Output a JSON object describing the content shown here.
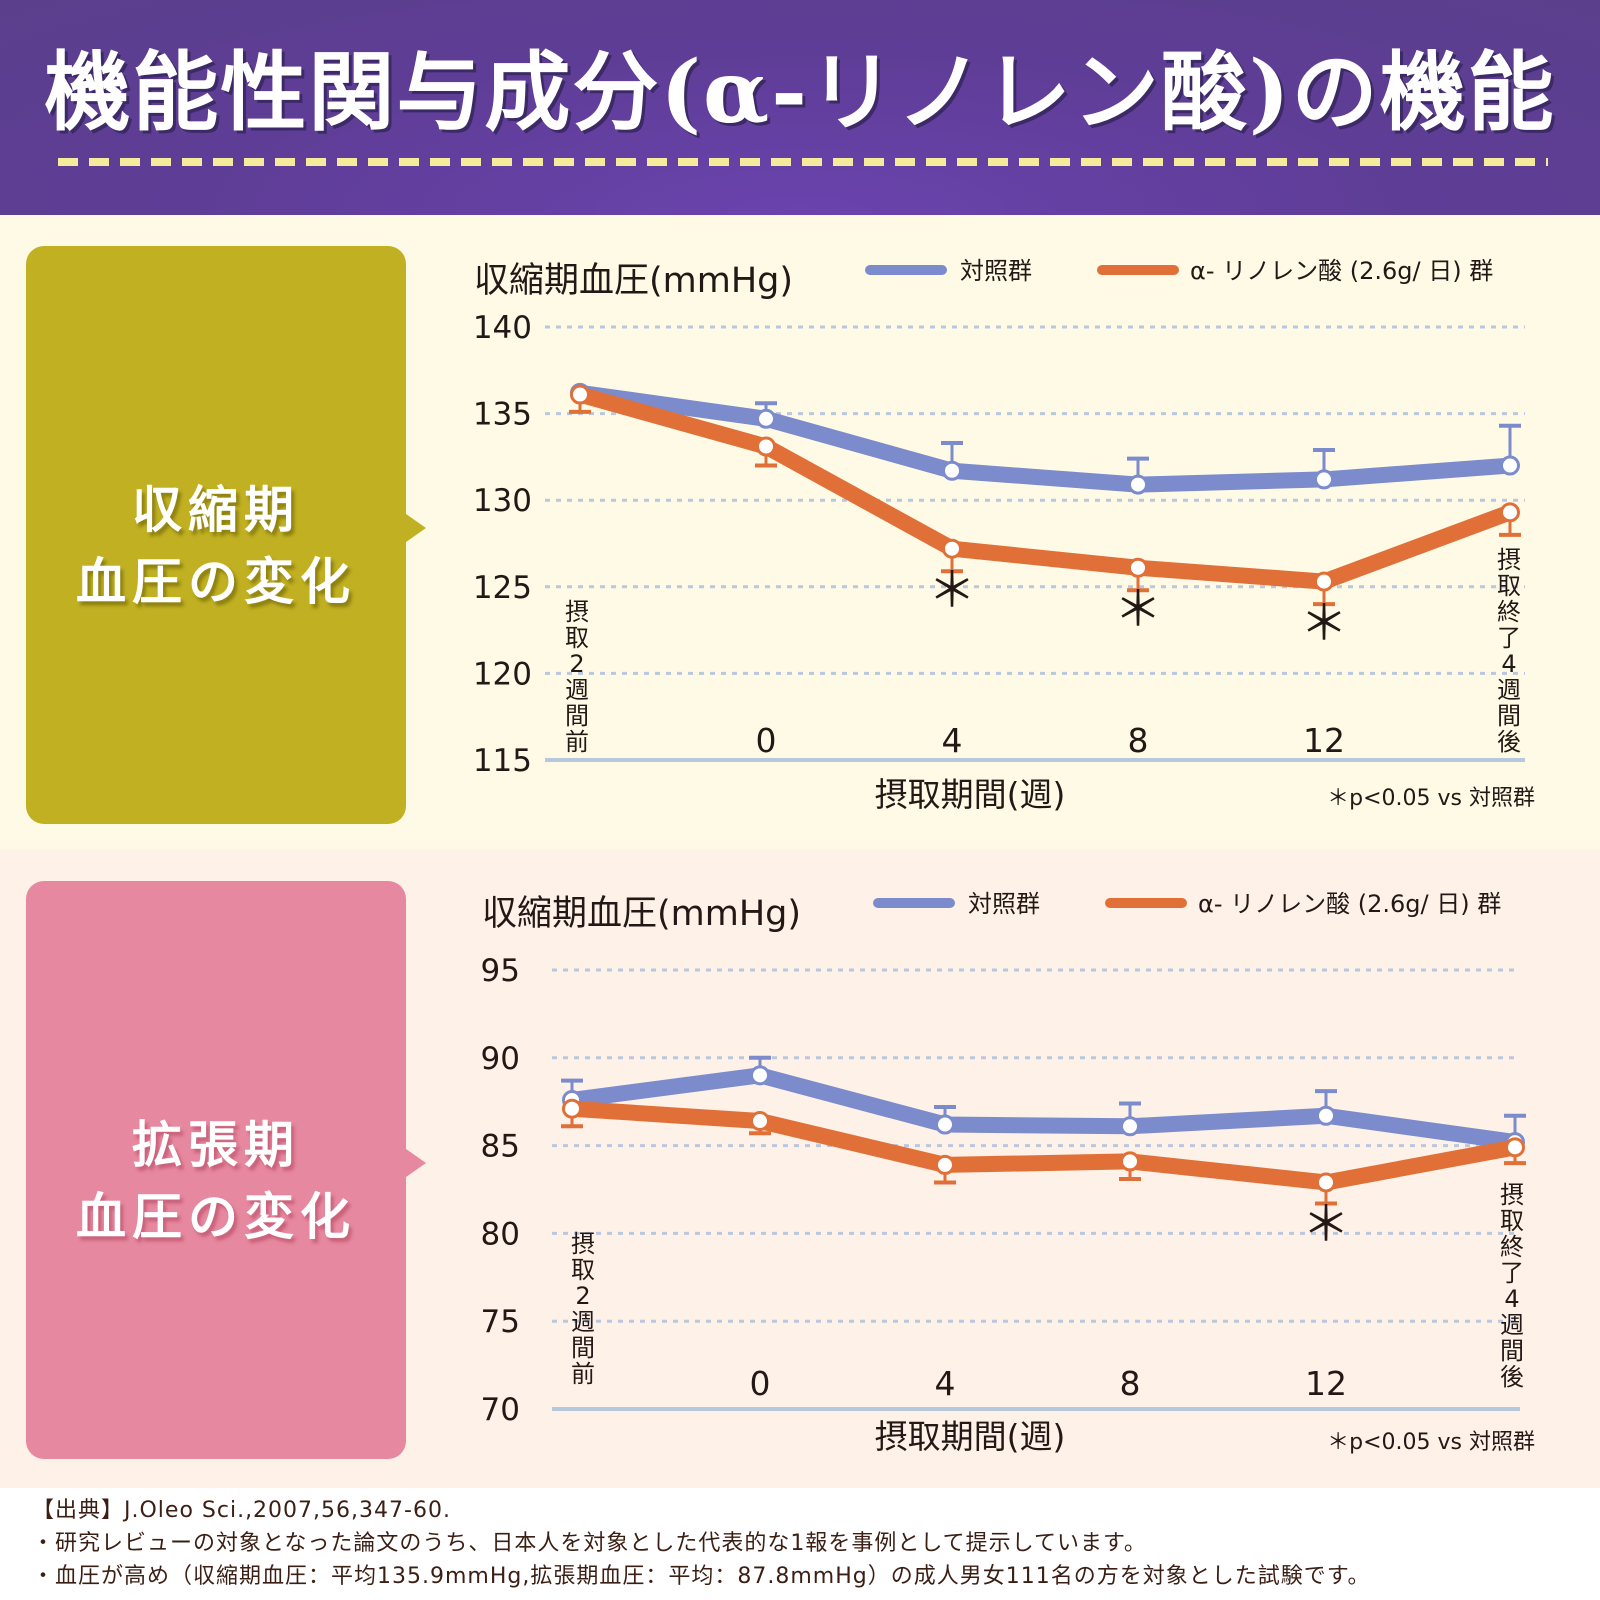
{
  "header": {
    "title": "機能性関与成分(α-リノレン酸)の機能"
  },
  "colors": {
    "control": "#7b8bcc",
    "ala": "#e07038",
    "grid": "#b9c8de",
    "axis": "#b6c9dc",
    "systolic_panel": "#c0b022",
    "diastolic_panel": "#e6889f"
  },
  "sections": [
    {
      "panel_label": "収縮期\n血圧の変化",
      "y_title": "収縮期血圧(mmHg)",
      "legend": {
        "control": "対照群",
        "ala": "α- リノレン酸 (2.6g/ 日) 群"
      },
      "x_title": "摂取期間(週)",
      "note": "＊p<0.05 vs 対照群",
      "x_pre_label": "摂取2週間前",
      "x_post_label": "摂取終了4週間後"
    },
    {
      "panel_label": "拡張期\n血圧の変化",
      "y_title": "収縮期血圧(mmHg)",
      "legend": {
        "control": "対照群",
        "ala": "α- リノレン酸 (2.6g/ 日) 群"
      },
      "x_title": "摂取期間(週)",
      "note": "＊p<0.05 vs 対照群",
      "x_pre_label": "摂取2週間前",
      "x_post_label": "摂取終了4週間後"
    }
  ],
  "chart_data": [
    {
      "type": "line",
      "title": "収縮期血圧の変化",
      "ylabel": "収縮期血圧(mmHg)",
      "xlabel": "摂取期間(週)",
      "categories": [
        "摂取2週間前",
        "0",
        "4",
        "8",
        "12",
        "摂取終了4週間後"
      ],
      "ylim": [
        115,
        140
      ],
      "yticks": [
        115,
        120,
        125,
        130,
        135,
        140
      ],
      "grid": true,
      "legend_position": "top",
      "series": [
        {
          "name": "対照群",
          "key": "control",
          "values": [
            136.2,
            134.7,
            131.7,
            130.9,
            131.2,
            132.0
          ],
          "error": [
            null,
            0.9,
            1.6,
            1.5,
            1.7,
            2.3
          ],
          "error_dir": "up"
        },
        {
          "name": "α- リノレン酸 (2.6g/ 日) 群",
          "key": "ala",
          "values": [
            136.1,
            133.1,
            127.2,
            126.1,
            125.3,
            129.3
          ],
          "error": [
            1.0,
            1.1,
            1.3,
            1.3,
            1.3,
            1.3
          ],
          "error_dir": "down"
        }
      ],
      "significance": [
        false,
        false,
        true,
        true,
        true,
        false
      ],
      "annotation": "＊p<0.05 vs 対照群"
    },
    {
      "type": "line",
      "title": "拡張期血圧の変化",
      "ylabel": "収縮期血圧(mmHg)",
      "xlabel": "摂取期間(週)",
      "categories": [
        "摂取2週間前",
        "0",
        "4",
        "8",
        "12",
        "摂取終了4週間後"
      ],
      "ylim": [
        70,
        95
      ],
      "yticks": [
        70,
        75,
        80,
        85,
        90,
        95
      ],
      "grid": true,
      "legend_position": "top",
      "series": [
        {
          "name": "対照群",
          "key": "control",
          "values": [
            87.6,
            89.0,
            86.2,
            86.1,
            86.7,
            85.2
          ],
          "error": [
            1.1,
            1.0,
            1.0,
            1.3,
            1.4,
            1.5
          ],
          "error_dir": "up"
        },
        {
          "name": "α- リノレン酸 (2.6g/ 日) 群",
          "key": "ala",
          "values": [
            87.1,
            86.4,
            83.9,
            84.1,
            82.9,
            84.9
          ],
          "error": [
            1.0,
            0.7,
            1.0,
            1.0,
            1.2,
            0.9
          ],
          "error_dir": "down"
        }
      ],
      "significance": [
        false,
        false,
        false,
        false,
        true,
        false
      ],
      "annotation": "＊p<0.05 vs 対照群"
    }
  ],
  "footer": {
    "source": "【出典】J.Oleo Sci.,2007,56,347-60.",
    "note1": "・研究レビューの対象となった論文のうち、日本人を対象とした代表的な1報を事例として提示しています。",
    "note2": "・血圧が高め（収縮期血圧：平均135.9mmHg,拡張期血圧：平均：87.8mmHg）の成人男女111名の方を対象とした試験です。"
  }
}
